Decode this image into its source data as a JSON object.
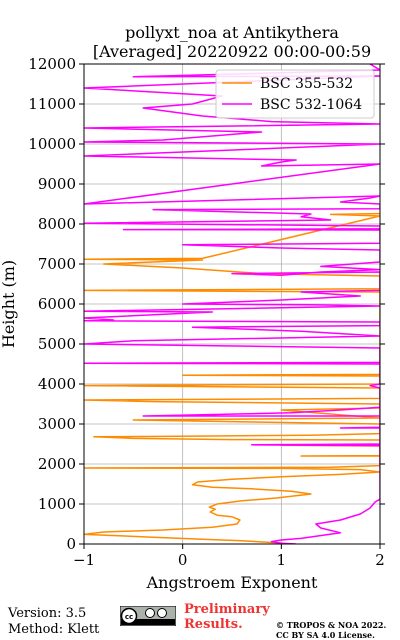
{
  "chart_data": {
    "type": "line",
    "title": "pollyxt_noa at Antikythera",
    "subtitle": "[Averaged] 20220922 00:00-00:59",
    "xlabel": "Angstroem Exponent",
    "ylabel": "Height (m)",
    "xlim": [
      -1,
      2
    ],
    "ylim": [
      0,
      12000
    ],
    "x_ticks": [
      -1,
      0,
      1,
      2
    ],
    "y_ticks": [
      0,
      1000,
      2000,
      3000,
      4000,
      5000,
      6000,
      7000,
      8000,
      9000,
      10000,
      11000,
      12000
    ],
    "grid": true,
    "legend_position": "top-right",
    "series": [
      {
        "name": "BSC 355-532",
        "color": "#ff8c00",
        "points": [
          [
            1.08,
            0
          ],
          [
            0.95,
            30
          ],
          [
            0.6,
            80
          ],
          [
            0.2,
            120
          ],
          [
            -0.3,
            170
          ],
          [
            -1.0,
            240
          ],
          [
            -0.8,
            300
          ],
          [
            -0.2,
            350
          ],
          [
            0.3,
            420
          ],
          [
            0.55,
            500
          ],
          [
            0.58,
            600
          ],
          [
            0.5,
            680
          ],
          [
            0.35,
            720
          ],
          [
            0.28,
            800
          ],
          [
            0.33,
            870
          ],
          [
            0.27,
            920
          ],
          [
            0.35,
            1000
          ],
          [
            0.6,
            1080
          ],
          [
            0.95,
            1150
          ],
          [
            1.3,
            1250
          ],
          [
            1.1,
            1320
          ],
          [
            0.7,
            1380
          ],
          [
            0.3,
            1420
          ],
          [
            0.1,
            1480
          ],
          [
            0.15,
            1550
          ],
          [
            0.5,
            1620
          ],
          [
            1.0,
            1680
          ],
          [
            1.6,
            1740
          ],
          [
            2.0,
            1800
          ],
          [
            1.8,
            1860
          ],
          [
            1.0,
            1890
          ],
          [
            -1.0,
            1900
          ],
          [
            1.5,
            1920
          ],
          [
            2.0,
            1960
          ],
          [
            2.0,
            2200
          ],
          [
            1.2,
            2200
          ],
          [
            2.0,
            2210
          ],
          [
            2.0,
            2450
          ],
          [
            1.0,
            2470
          ],
          [
            2.0,
            2500
          ],
          [
            2.0,
            2600
          ],
          [
            0.5,
            2610
          ],
          [
            -0.5,
            2640
          ],
          [
            -0.9,
            2680
          ],
          [
            0.3,
            2700
          ],
          [
            1.3,
            2720
          ],
          [
            2.0,
            2760
          ],
          [
            2.0,
            3000
          ],
          [
            -0.5,
            3100
          ],
          [
            2.0,
            3150
          ],
          [
            1.0,
            3350
          ],
          [
            2.0,
            3400
          ],
          [
            2.0,
            3500
          ],
          [
            -0.3,
            3560
          ],
          [
            -1.0,
            3600
          ],
          [
            2.0,
            3640
          ],
          [
            2.0,
            3900
          ],
          [
            -1.0,
            3960
          ],
          [
            2.0,
            4000
          ],
          [
            2.0,
            4200
          ],
          [
            0.0,
            4220
          ],
          [
            2.0,
            4240
          ],
          [
            2.0,
            6300
          ],
          [
            -1.0,
            6340
          ],
          [
            2.0,
            6380
          ],
          [
            2.0,
            6700
          ],
          [
            0.8,
            6760
          ],
          [
            0.0,
            6900
          ],
          [
            -0.8,
            7000
          ],
          [
            0.2,
            7100
          ],
          [
            -1.0,
            7120
          ],
          [
            0.2,
            7140
          ],
          [
            2.0,
            8200
          ],
          [
            1.5,
            8240
          ],
          [
            2.0,
            8260
          ]
        ]
      },
      {
        "name": "BSC 532-1064",
        "color": "#ff00ff",
        "points": [
          [
            1.15,
            0
          ],
          [
            1.0,
            20
          ],
          [
            0.9,
            60
          ],
          [
            1.0,
            100
          ],
          [
            1.2,
            140
          ],
          [
            1.6,
            280
          ],
          [
            1.4,
            400
          ],
          [
            1.35,
            500
          ],
          [
            1.6,
            600
          ],
          [
            1.8,
            750
          ],
          [
            1.9,
            900
          ],
          [
            1.95,
            1050
          ],
          [
            2.0,
            1120
          ],
          [
            2.0,
            2900
          ],
          [
            1.6,
            2900
          ],
          [
            2.0,
            2920
          ],
          [
            2.0,
            3200
          ],
          [
            -0.4,
            3200
          ],
          [
            1.1,
            3280
          ],
          [
            1.6,
            3350
          ],
          [
            2.0,
            3420
          ],
          [
            2.0,
            2500
          ],
          [
            0.7,
            2480
          ],
          [
            2.0,
            2460
          ],
          [
            2.0,
            3900
          ],
          [
            1.9,
            3960
          ],
          [
            2.0,
            4000
          ],
          [
            2.0,
            4500
          ],
          [
            -1.0,
            4520
          ],
          [
            2.0,
            4540
          ],
          [
            2.0,
            4900
          ],
          [
            -1.0,
            5000
          ],
          [
            -0.5,
            5080
          ],
          [
            2.0,
            5200
          ],
          [
            1.2,
            5320
          ],
          [
            0.1,
            5420
          ],
          [
            2.0,
            5460
          ],
          [
            2.0,
            5550
          ],
          [
            -1.0,
            5580
          ],
          [
            -0.7,
            5600
          ],
          [
            -1.0,
            5650
          ],
          [
            0.3,
            5800
          ],
          [
            -1.0,
            5820
          ],
          [
            2.0,
            5950
          ],
          [
            1.3,
            5980
          ],
          [
            0.0,
            6000
          ],
          [
            1.0,
            6100
          ],
          [
            1.8,
            6200
          ],
          [
            1.2,
            6300
          ],
          [
            2.0,
            6340
          ],
          [
            2.0,
            6800
          ],
          [
            0.5,
            6760
          ],
          [
            1.0,
            6720
          ],
          [
            1.4,
            6800
          ],
          [
            2.0,
            6860
          ],
          [
            1.4,
            6940
          ],
          [
            2.0,
            7050
          ],
          [
            2.0,
            7350
          ],
          [
            1.0,
            7400
          ],
          [
            0.0,
            7480
          ],
          [
            2.0,
            7520
          ],
          [
            2.0,
            7850
          ],
          [
            -0.6,
            7860
          ],
          [
            2.0,
            7880
          ],
          [
            2.0,
            7950
          ],
          [
            -1.0,
            8020
          ],
          [
            1.5,
            8100
          ],
          [
            1.2,
            8180
          ],
          [
            1.3,
            8250
          ],
          [
            -0.3,
            8360
          ],
          [
            2.0,
            8380
          ],
          [
            2.0,
            8500
          ],
          [
            1.6,
            8550
          ],
          [
            1.9,
            8650
          ],
          [
            2.0,
            8700
          ],
          [
            -1.0,
            8500
          ],
          [
            2.0,
            9500
          ],
          [
            0.8,
            9450
          ],
          [
            1.0,
            9550
          ],
          [
            1.15,
            9600
          ],
          [
            -1.0,
            9700
          ],
          [
            2.0,
            10000
          ],
          [
            -1.0,
            10050
          ],
          [
            -0.2,
            10100
          ],
          [
            0.3,
            10200
          ],
          [
            0.8,
            10300
          ],
          [
            -1.0,
            10400
          ],
          [
            2.0,
            10500
          ],
          [
            0.9,
            10560
          ],
          [
            0.2,
            10700
          ],
          [
            -0.4,
            10900
          ],
          [
            0.1,
            11000
          ],
          [
            0.4,
            11200
          ],
          [
            -1.0,
            11400
          ],
          [
            2.0,
            11700
          ],
          [
            -0.5,
            11680
          ],
          [
            2.0,
            11850
          ],
          [
            1.9,
            12000
          ]
        ]
      }
    ]
  },
  "footer": {
    "version": "Version: 3.5",
    "method": "Method: Klett",
    "preliminary": "Preliminary Results.",
    "copyright_line1": "© TROPOS & NOA 2022.",
    "copyright_line2": "CC BY SA 4.0 License."
  }
}
